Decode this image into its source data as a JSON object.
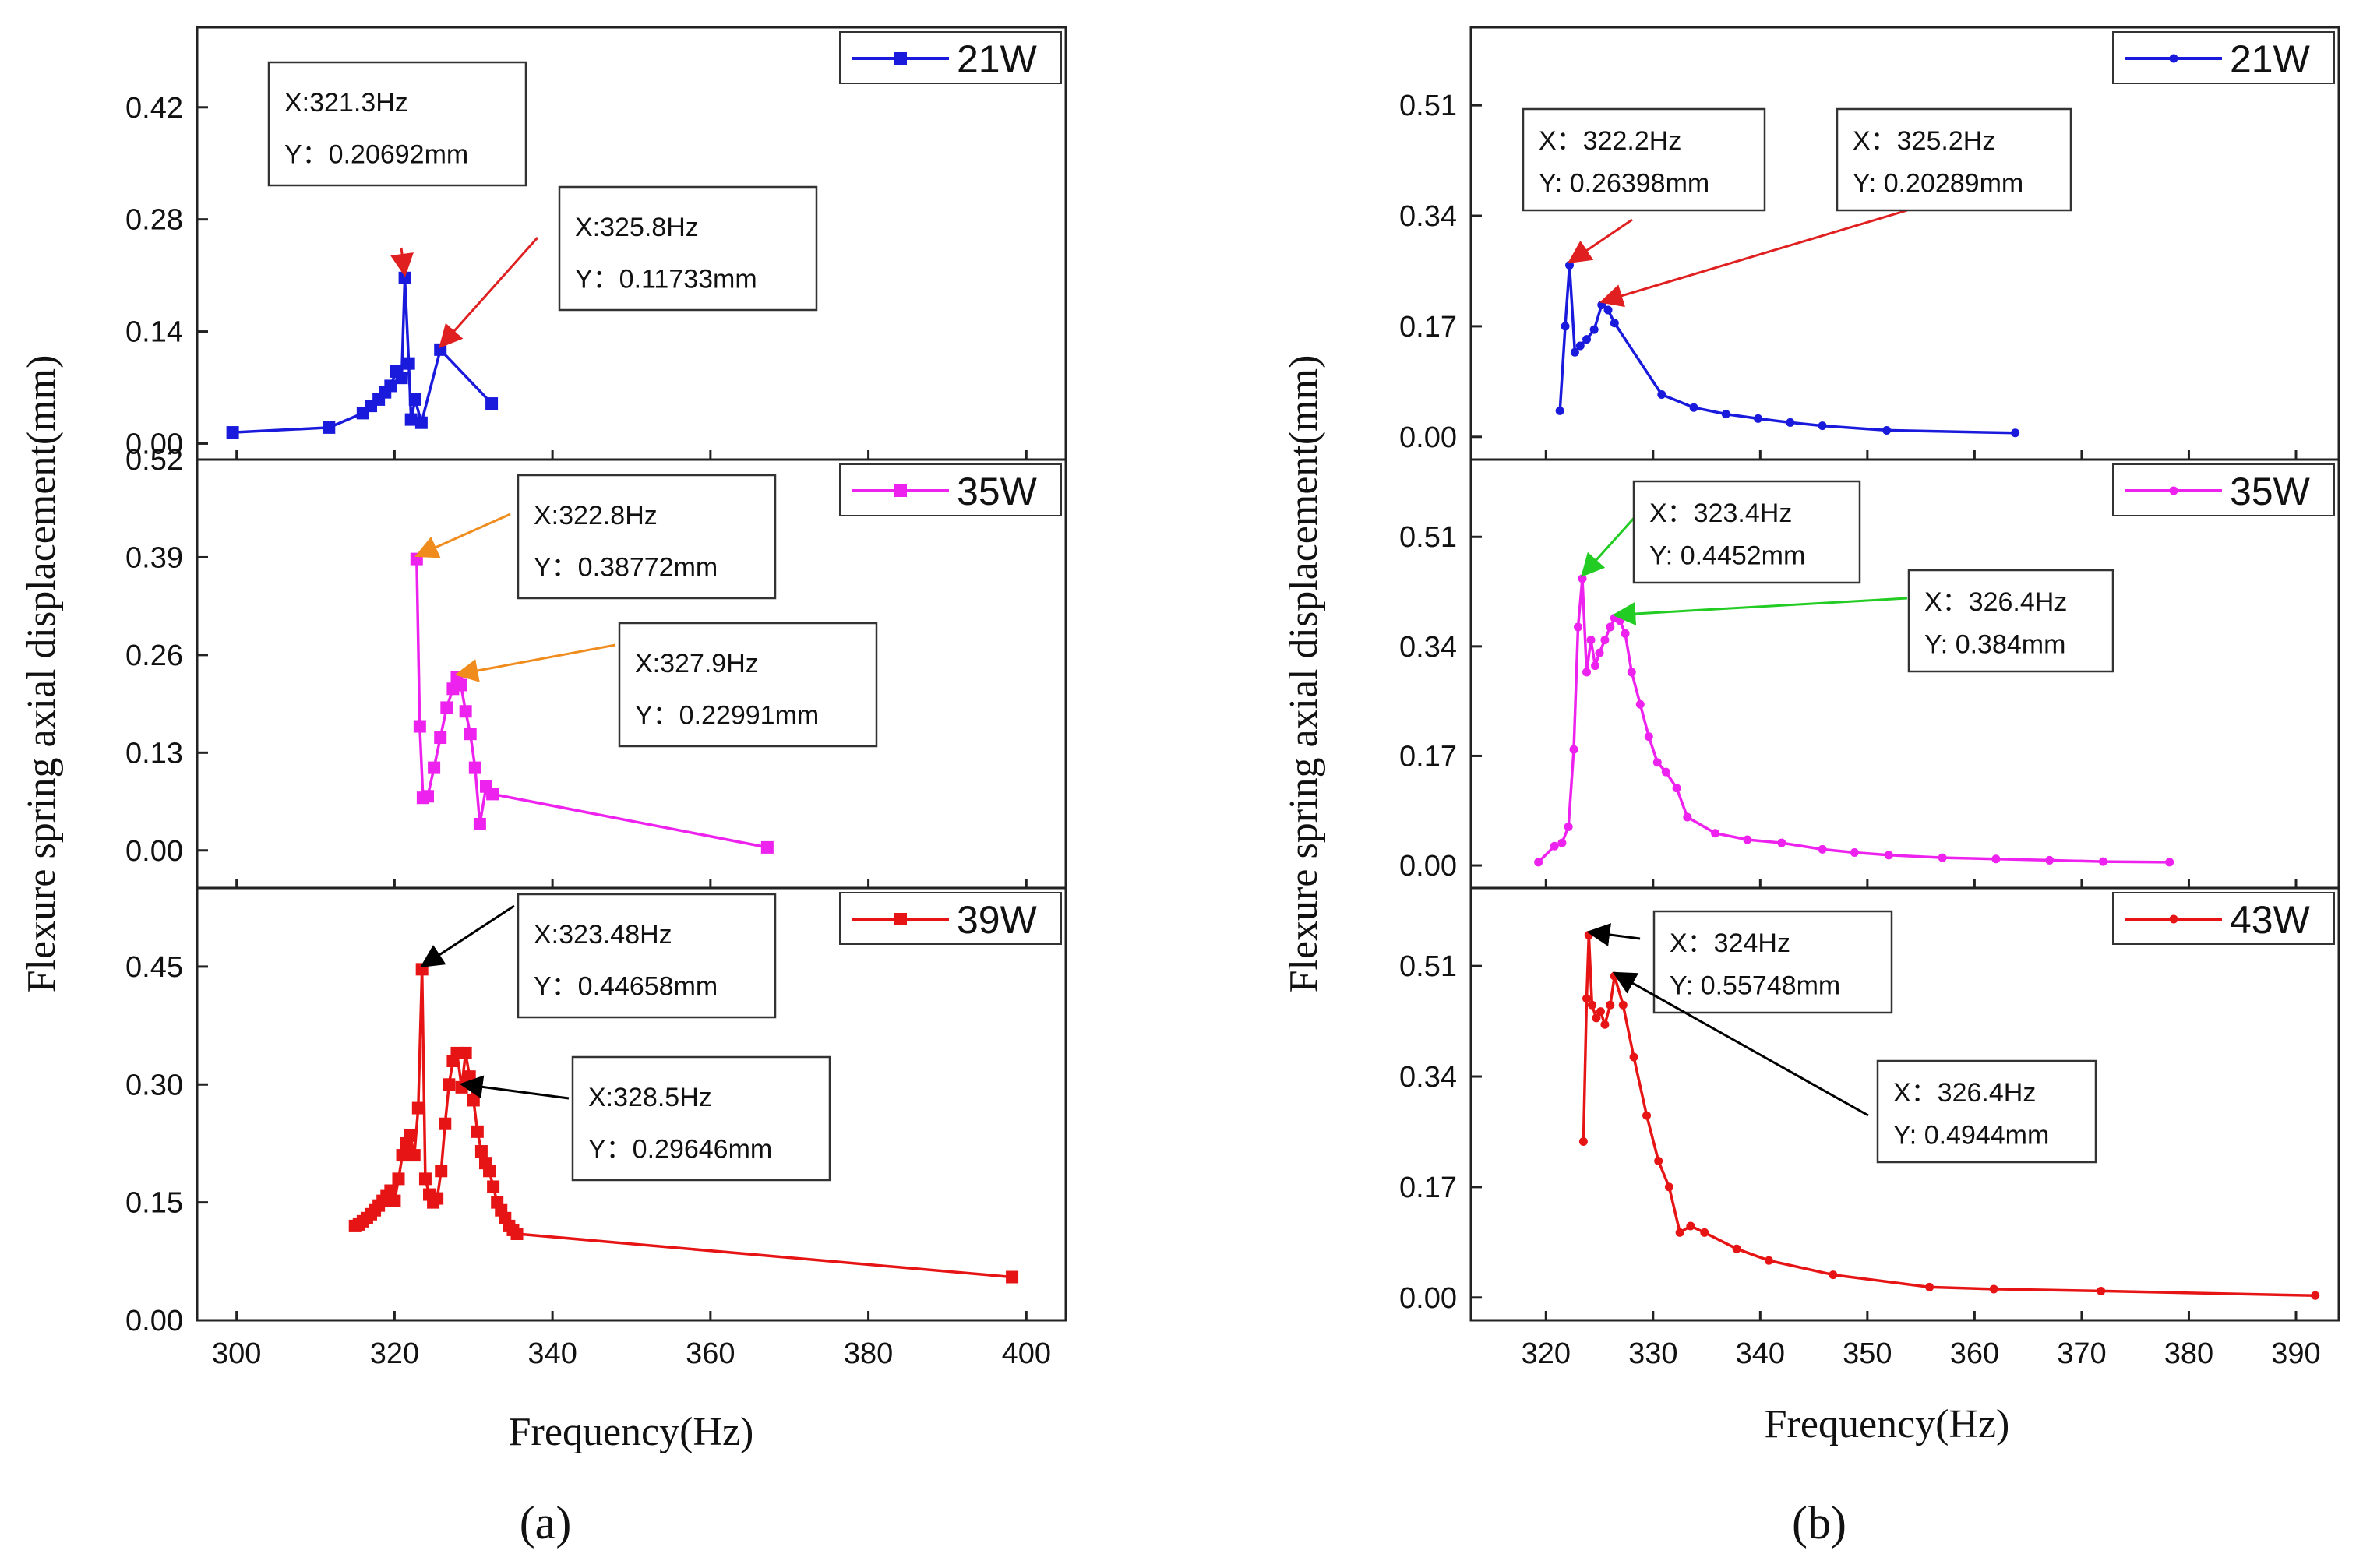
{
  "panel_labels": {
    "a": "(a)",
    "b": "(b)"
  },
  "chart_data": [
    {
      "id": "a",
      "type": "line",
      "panel_label": "(a)",
      "xlabel": "Frequency(Hz)",
      "ylabel": "Flexure spring axial displacement(mm)",
      "xlim": [
        295,
        405
      ],
      "xticks": [
        300,
        320,
        340,
        360,
        380,
        400
      ],
      "subplots": [
        {
          "name": "21W",
          "color": "#1a1adc",
          "marker": "square",
          "ylim": [
            -0.02,
            0.52
          ],
          "yticks": [
            0.0,
            0.14,
            0.28,
            0.42
          ],
          "ytick_labels": [
            "0.00",
            "0.14",
            "0.28",
            "0.42"
          ],
          "x": [
            299.5,
            311.7,
            316.0,
            317.0,
            318.0,
            318.8,
            319.5,
            320.2,
            320.9,
            321.3,
            321.8,
            322.1,
            322.6,
            323.4,
            325.8,
            332.3
          ],
          "y": [
            0.014,
            0.02,
            0.038,
            0.047,
            0.055,
            0.064,
            0.072,
            0.09,
            0.082,
            0.20692,
            0.1,
            0.03,
            0.055,
            0.026,
            0.11733,
            0.05
          ],
          "annotations": [
            {
              "line1": "X:321.3Hz",
              "line2": "Y：0.20692mm",
              "x": 321.3,
              "y": 0.20692,
              "arrow_color": "#e02020"
            },
            {
              "line1": "X:325.8Hz",
              "line2": "Y：0.11733mm",
              "x": 325.8,
              "y": 0.11733,
              "arrow_color": "#e02020"
            }
          ]
        },
        {
          "name": "35W",
          "color": "#ee22ee",
          "marker": "square",
          "ylim": [
            -0.05,
            0.52
          ],
          "yticks": [
            0.0,
            0.13,
            0.26,
            0.39,
            0.52
          ],
          "ytick_labels": [
            "0.00",
            "0.13",
            "0.26",
            "0.39",
            "0.52"
          ],
          "x": [
            322.8,
            323.2,
            323.6,
            324.2,
            325.0,
            325.8,
            326.6,
            327.4,
            327.9,
            328.4,
            329.0,
            329.6,
            330.2,
            330.8,
            331.6,
            332.4,
            367.2
          ],
          "y": [
            0.38772,
            0.165,
            0.07,
            0.072,
            0.11,
            0.15,
            0.19,
            0.215,
            0.22991,
            0.22,
            0.185,
            0.155,
            0.11,
            0.035,
            0.085,
            0.075,
            0.004
          ],
          "annotations": [
            {
              "line1": "X:322.8Hz",
              "line2": "Y：0.38772mm",
              "x": 322.8,
              "y": 0.38772,
              "arrow_color": "#f08c1e"
            },
            {
              "line1": "X:327.9Hz",
              "line2": "Y：0.22991mm",
              "x": 327.9,
              "y": 0.22991,
              "arrow_color": "#f08c1e"
            }
          ]
        },
        {
          "name": "39W",
          "color": "#e61414",
          "marker": "square",
          "ylim": [
            0.0,
            0.55
          ],
          "yticks": [
            0.0,
            0.15,
            0.3,
            0.45
          ],
          "ytick_labels": [
            "0.00",
            "0.15",
            "0.30",
            "0.45"
          ],
          "x": [
            315.0,
            315.5,
            316.0,
            316.5,
            317.0,
            317.5,
            318.0,
            318.5,
            319.0,
            319.5,
            320.0,
            320.5,
            321.0,
            321.5,
            322.0,
            322.5,
            323.0,
            323.48,
            323.9,
            324.4,
            324.9,
            325.4,
            325.9,
            326.4,
            326.9,
            327.4,
            327.9,
            328.5,
            329.0,
            329.5,
            330.0,
            330.5,
            331.0,
            331.5,
            332.0,
            332.5,
            333.0,
            333.5,
            334.0,
            334.5,
            335.0,
            335.5,
            398.2
          ],
          "y": [
            0.12,
            0.122,
            0.126,
            0.13,
            0.135,
            0.14,
            0.146,
            0.152,
            0.158,
            0.165,
            0.152,
            0.18,
            0.21,
            0.225,
            0.235,
            0.21,
            0.27,
            0.44658,
            0.18,
            0.16,
            0.15,
            0.155,
            0.19,
            0.25,
            0.3,
            0.33,
            0.34,
            0.29646,
            0.34,
            0.31,
            0.28,
            0.24,
            0.215,
            0.2,
            0.19,
            0.17,
            0.15,
            0.14,
            0.13,
            0.12,
            0.115,
            0.11,
            0.055
          ],
          "annotations": [
            {
              "line1": "X:323.48Hz",
              "line2": "Y：0.44658mm",
              "x": 323.48,
              "y": 0.44658,
              "arrow_color": "#000000"
            },
            {
              "line1": "X:328.5Hz",
              "line2": "Y：0.29646mm",
              "x": 328.5,
              "y": 0.29646,
              "arrow_color": "#000000"
            }
          ]
        }
      ]
    },
    {
      "id": "b",
      "type": "line",
      "panel_label": "(b)",
      "xlabel": "Frequency(Hz)",
      "ylabel": "Flexure spring axial displacement(mm)",
      "xlim": [
        313,
        394
      ],
      "xticks": [
        320,
        330,
        340,
        350,
        360,
        370,
        380,
        390
      ],
      "subplots": [
        {
          "name": "21W",
          "color": "#1a1adc",
          "marker": "dot",
          "ylim": [
            -0.035,
            0.63
          ],
          "yticks": [
            0.0,
            0.17,
            0.34,
            0.51
          ],
          "ytick_labels": [
            "0.00",
            "0.17",
            "0.34",
            "0.51"
          ],
          "x": [
            321.3,
            321.8,
            322.2,
            322.7,
            323.2,
            323.8,
            324.5,
            325.2,
            325.8,
            326.4,
            330.8,
            333.8,
            336.8,
            339.8,
            342.8,
            345.8,
            351.8,
            363.8
          ],
          "y": [
            0.04,
            0.17,
            0.26398,
            0.13,
            0.14,
            0.15,
            0.165,
            0.20289,
            0.195,
            0.175,
            0.065,
            0.045,
            0.035,
            0.028,
            0.022,
            0.017,
            0.01,
            0.006
          ],
          "annotations": [
            {
              "line1": "X：322.2Hz",
              "line2": "Y: 0.26398mm",
              "x": 322.2,
              "y": 0.26398,
              "arrow_color": "#e02020"
            },
            {
              "line1": "X：325.2Hz",
              "line2": "Y: 0.20289mm",
              "x": 325.2,
              "y": 0.20289,
              "arrow_color": "#e02020"
            }
          ]
        },
        {
          "name": "35W",
          "color": "#ee22ee",
          "marker": "dot",
          "ylim": [
            -0.035,
            0.63
          ],
          "yticks": [
            0.0,
            0.17,
            0.34,
            0.51
          ],
          "ytick_labels": [
            "0.00",
            "0.17",
            "0.34",
            "0.51"
          ],
          "x": [
            319.3,
            320.8,
            321.5,
            322.1,
            322.6,
            323.0,
            323.4,
            323.8,
            324.2,
            324.6,
            325.0,
            325.5,
            326.0,
            326.4,
            326.9,
            327.4,
            328.0,
            328.8,
            329.6,
            330.4,
            331.2,
            332.2,
            333.2,
            335.8,
            338.8,
            342.0,
            345.8,
            348.8,
            352.0,
            357.0,
            362.0,
            367.0,
            372.0,
            378.2
          ],
          "y": [
            0.005,
            0.03,
            0.035,
            0.06,
            0.18,
            0.37,
            0.4452,
            0.3,
            0.35,
            0.31,
            0.33,
            0.35,
            0.37,
            0.384,
            0.38,
            0.36,
            0.3,
            0.25,
            0.2,
            0.16,
            0.145,
            0.12,
            0.075,
            0.05,
            0.04,
            0.035,
            0.025,
            0.02,
            0.016,
            0.012,
            0.01,
            0.008,
            0.006,
            0.005
          ],
          "annotations": [
            {
              "line1": "X：323.4Hz",
              "line2": "Y: 0.4452mm",
              "x": 323.4,
              "y": 0.4452,
              "arrow_color": "#22cc22"
            },
            {
              "line1": "X：326.4Hz",
              "line2": "Y: 0.384mm",
              "x": 326.4,
              "y": 0.384,
              "arrow_color": "#22cc22"
            }
          ]
        },
        {
          "name": "43W",
          "color": "#e61414",
          "marker": "dot",
          "ylim": [
            -0.035,
            0.63
          ],
          "yticks": [
            0.0,
            0.17,
            0.34,
            0.51
          ],
          "ytick_labels": [
            "0.00",
            "0.17",
            "0.34",
            "0.51"
          ],
          "x": [
            323.5,
            323.8,
            324.0,
            324.3,
            324.7,
            325.1,
            325.5,
            326.0,
            326.4,
            327.2,
            328.2,
            329.4,
            330.5,
            331.5,
            332.5,
            333.5,
            334.8,
            337.8,
            340.8,
            346.8,
            355.8,
            361.8,
            371.8,
            391.8
          ],
          "y": [
            0.24,
            0.46,
            0.55748,
            0.45,
            0.43,
            0.44,
            0.42,
            0.45,
            0.4944,
            0.45,
            0.37,
            0.28,
            0.21,
            0.17,
            0.1,
            0.11,
            0.1,
            0.075,
            0.057,
            0.035,
            0.016,
            0.013,
            0.01,
            0.003
          ],
          "annotations": [
            {
              "line1": "X：324Hz",
              "line2": "Y: 0.55748mm",
              "x": 324.0,
              "y": 0.55748,
              "arrow_color": "#000000"
            },
            {
              "line1": "X：326.4Hz",
              "line2": "Y: 0.4944mm",
              "x": 326.4,
              "y": 0.4944,
              "arrow_color": "#000000"
            }
          ]
        }
      ]
    }
  ]
}
